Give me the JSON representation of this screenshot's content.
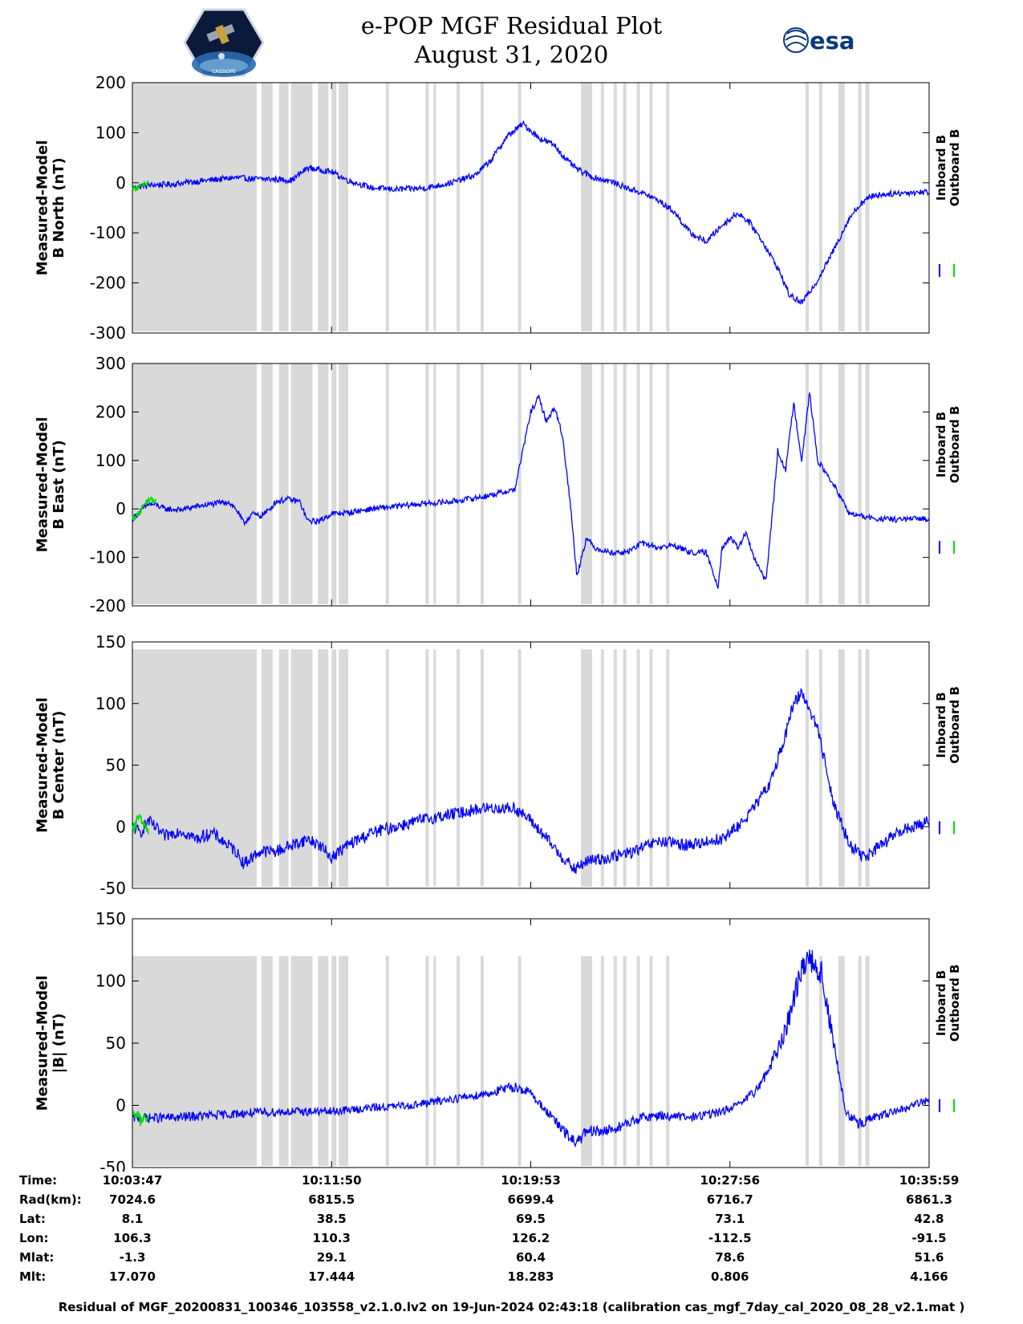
{
  "header": {
    "title_line1": "e-POP MGF Residual Plot",
    "title_line2": "August 31, 2020",
    "logo_left": "cassiope-logo",
    "logo_left_text": "CASSIOPE",
    "logo_right": "esa-logo",
    "logo_right_text": "esa"
  },
  "colors": {
    "inboard": "#0000ff",
    "outboard": "#00dd00",
    "gap": "#d9d9d9"
  },
  "chart_data": [
    {
      "type": "line",
      "ylabel_line1": "Measured-Model",
      "ylabel_line2": "B North (nT)",
      "ylim": [
        -300,
        200
      ],
      "yticks": [
        -300,
        -200,
        -100,
        0,
        100,
        200
      ],
      "series": [
        {
          "name": "Inboard B",
          "color": "#0000ff",
          "x": [
            0,
            1.5,
            3,
            5,
            7,
            10,
            13,
            15,
            18,
            20,
            22,
            25,
            27,
            30,
            33,
            35,
            37,
            40,
            43,
            45,
            47,
            49,
            51,
            53,
            54.5,
            56,
            58,
            60,
            62,
            64,
            66,
            68,
            70,
            72,
            74,
            76,
            77.5,
            79,
            81,
            82.5,
            84,
            86,
            88,
            90,
            91.5,
            93,
            95,
            97,
            100
          ],
          "y": [
            -10,
            -6,
            -4,
            -3,
            1,
            6,
            10,
            8,
            7,
            5,
            30,
            22,
            5,
            -10,
            -13,
            -12,
            -10,
            0,
            15,
            45,
            92,
            118,
            90,
            75,
            45,
            25,
            10,
            3,
            -10,
            -20,
            -35,
            -58,
            -100,
            -118,
            -85,
            -60,
            -80,
            -115,
            -170,
            -225,
            -240,
            -195,
            -135,
            -70,
            -40,
            -25,
            -22,
            -20,
            -18
          ]
        },
        {
          "name": "Outboard B",
          "color": "#00dd00",
          "x": [
            0,
            0.5,
            1,
            1.5,
            2
          ],
          "y": [
            -12,
            -11,
            -7,
            -2,
            1
          ]
        }
      ]
    },
    {
      "type": "line",
      "ylabel_line1": "Measured-Model",
      "ylabel_line2": "B East (nT)",
      "ylim": [
        -200,
        300
      ],
      "yticks": [
        -200,
        -100,
        0,
        100,
        200,
        300
      ],
      "series": [
        {
          "name": "Inboard B",
          "color": "#0000ff",
          "x": [
            0,
            1,
            2,
            3,
            4,
            6,
            8,
            10,
            12,
            13,
            14,
            15,
            16,
            17,
            18,
            19.5,
            21,
            22,
            23.5,
            25,
            27,
            30,
            33,
            36,
            40,
            44,
            48,
            50,
            51,
            52,
            53,
            54,
            55,
            55.8,
            56.5,
            57,
            58,
            60,
            62,
            64,
            66,
            68,
            70,
            72,
            73.5,
            74,
            75,
            76,
            77,
            78,
            79.5,
            80.5,
            81,
            82,
            83,
            84,
            85,
            86,
            88,
            90,
            93,
            96,
            100
          ],
          "y": [
            -20,
            -5,
            10,
            8,
            0,
            -2,
            5,
            10,
            15,
            0,
            -30,
            -10,
            -15,
            -5,
            15,
            20,
            15,
            -25,
            -25,
            -10,
            -8,
            0,
            5,
            10,
            15,
            25,
            40,
            200,
            230,
            180,
            210,
            150,
            5,
            -140,
            -90,
            -60,
            -80,
            -90,
            -90,
            -70,
            -80,
            -75,
            -90,
            -90,
            -160,
            -80,
            -60,
            -80,
            -50,
            -100,
            -150,
            20,
            120,
            80,
            220,
            100,
            240,
            100,
            50,
            -10,
            -20,
            -22,
            -20
          ]
        },
        {
          "name": "Outboard B",
          "color": "#00dd00",
          "x": [
            0,
            0.5,
            1,
            1.5,
            2,
            2.5,
            3
          ],
          "y": [
            -18,
            -15,
            -5,
            8,
            18,
            20,
            15
          ]
        }
      ]
    },
    {
      "type": "line",
      "ylabel_line1": "Measured-Model",
      "ylabel_line2": "B Center (nT)",
      "ylim": [
        -50,
        150
      ],
      "yticks": [
        -50,
        0,
        50,
        100,
        150
      ],
      "series": [
        {
          "name": "Inboard B",
          "color": "#0000ff",
          "x": [
            0,
            1,
            2,
            4,
            6,
            8,
            10,
            12,
            13,
            14,
            15,
            16,
            18,
            20,
            22,
            23.5,
            25,
            27,
            30,
            33,
            36,
            40,
            44,
            48,
            50,
            52,
            54,
            55.5,
            57,
            60,
            63,
            66,
            70,
            72,
            74,
            76,
            78,
            80,
            82,
            83,
            84,
            86,
            88,
            90,
            92,
            94,
            96,
            100
          ],
          "y": [
            0,
            -5,
            5,
            -8,
            -3,
            -10,
            -5,
            -15,
            -20,
            -30,
            -25,
            -20,
            -20,
            -15,
            -10,
            -15,
            -25,
            -15,
            -5,
            0,
            5,
            10,
            15,
            15,
            5,
            -10,
            -25,
            -35,
            -28,
            -25,
            -20,
            -12,
            -15,
            -12,
            -10,
            0,
            15,
            35,
            75,
            100,
            110,
            80,
            20,
            -15,
            -25,
            -15,
            -5,
            5
          ]
        },
        {
          "name": "Outboard B",
          "color": "#00dd00",
          "x": [
            0,
            0.5,
            1,
            1.5,
            2
          ],
          "y": [
            -5,
            5,
            10,
            2,
            -3
          ]
        }
      ]
    },
    {
      "type": "line",
      "ylabel_line1": "Measured-Model",
      "ylabel_line2": "|B| (nT)",
      "ylim": [
        -50,
        150
      ],
      "yticks": [
        -50,
        0,
        50,
        100,
        150
      ],
      "series": [
        {
          "name": "Inboard B",
          "color": "#0000ff",
          "x": [
            0,
            5,
            10,
            15,
            20,
            25,
            30,
            35,
            40,
            45,
            48,
            50,
            52,
            54,
            55.5,
            57,
            60,
            62,
            64,
            66,
            70,
            74,
            76,
            78,
            80,
            82,
            83.5,
            85,
            86.5,
            88,
            89.5,
            91,
            93,
            96,
            100
          ],
          "y": [
            -10,
            -10,
            -8,
            -6,
            -5,
            -5,
            -2,
            0,
            5,
            10,
            15,
            10,
            -5,
            -20,
            -30,
            -22,
            -20,
            -15,
            -10,
            -8,
            -10,
            -5,
            0,
            10,
            30,
            60,
            100,
            122,
            105,
            50,
            -5,
            -15,
            -10,
            -5,
            5
          ]
        },
        {
          "name": "Outboard B",
          "color": "#00dd00",
          "x": [
            0,
            0.5,
            1,
            1.5,
            2
          ],
          "y": [
            -10,
            -8,
            -12,
            -9,
            -10
          ]
        }
      ]
    }
  ],
  "data_gaps": [
    [
      0,
      15.6
    ],
    [
      16.2,
      17.6
    ],
    [
      18.4,
      19.6
    ],
    [
      19.9,
      22.6
    ],
    [
      23.3,
      24.6
    ],
    [
      25.0,
      25.6
    ],
    [
      25.9,
      27.1
    ],
    [
      31.8,
      32.2
    ],
    [
      36.8,
      37.2
    ],
    [
      37.8,
      38.1
    ],
    [
      40.7,
      41.1
    ],
    [
      43.7,
      44.1
    ],
    [
      48.4,
      48.8
    ],
    [
      56.3,
      57.7
    ],
    [
      58.8,
      59.2
    ],
    [
      60.4,
      60.8
    ],
    [
      61.6,
      62.0
    ],
    [
      63.3,
      63.7
    ],
    [
      64.9,
      65.3
    ],
    [
      67.0,
      67.4
    ],
    [
      84.5,
      84.9
    ],
    [
      86.2,
      86.6
    ],
    [
      88.6,
      89.4
    ],
    [
      91.1,
      91.5
    ],
    [
      92.0,
      92.5
    ]
  ],
  "legend": {
    "inboard_label": "Inboard B",
    "outboard_label": "Outboard B"
  },
  "info_table": {
    "labels": [
      "Time:",
      "Rad(km):",
      "Lat:",
      "Lon:",
      "Mlat:",
      "Mlt:"
    ],
    "columns": [
      [
        "10:03:47",
        "7024.6",
        "8.1",
        "106.3",
        "-1.3",
        "17.070"
      ],
      [
        "10:11:50",
        "6815.5",
        "38.5",
        "110.3",
        "29.1",
        "17.444"
      ],
      [
        "10:19:53",
        "6699.4",
        "69.5",
        "126.2",
        "60.4",
        "18.283"
      ],
      [
        "10:27:56",
        "6716.7",
        "73.1",
        "-112.5",
        "78.6",
        "0.806"
      ],
      [
        "10:35:59",
        "6861.3",
        "42.8",
        "-91.5",
        "51.6",
        "4.166"
      ]
    ]
  },
  "footer": "Residual of MGF_20200831_100346_103558_v2.1.0.lv2 on 19-Jun-2024 02:43:18 (calibration cas_mgf_7day_cal_2020_08_28_v2.1.mat )"
}
